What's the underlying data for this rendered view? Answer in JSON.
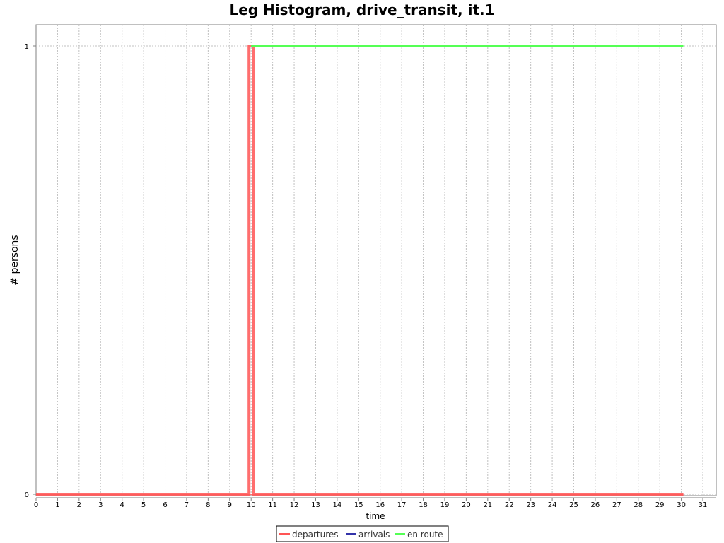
{
  "chart_data": {
    "type": "line",
    "title": "Leg Histogram, drive_transit, it.1",
    "xlabel": "time",
    "ylabel": "# persons",
    "xlim": [
      0,
      31
    ],
    "ylim": [
      0,
      1
    ],
    "x_ticks": [
      "0",
      "1",
      "2",
      "3",
      "4",
      "5",
      "6",
      "7",
      "8",
      "9",
      "10",
      "11",
      "12",
      "13",
      "14",
      "15",
      "16",
      "17",
      "18",
      "19",
      "20",
      "21",
      "22",
      "23",
      "24",
      "25",
      "26",
      "27",
      "28",
      "29",
      "30",
      "31"
    ],
    "y_ticks": [
      "0",
      "1"
    ],
    "grid": true,
    "legend_position": "bottom",
    "series": [
      {
        "name": "departures",
        "color": "#ff5555",
        "points": [
          [
            0,
            0
          ],
          [
            9.9,
            0
          ],
          [
            9.9,
            1
          ],
          [
            10.1,
            1
          ],
          [
            10.1,
            0
          ],
          [
            30.1,
            0
          ]
        ]
      },
      {
        "name": "arrivals",
        "color": "#3333aa",
        "points": [
          [
            0,
            0
          ],
          [
            30.1,
            0
          ]
        ]
      },
      {
        "name": "en route",
        "color": "#55ff55",
        "points": [
          [
            10,
            1
          ],
          [
            30.1,
            1
          ]
        ]
      }
    ]
  }
}
